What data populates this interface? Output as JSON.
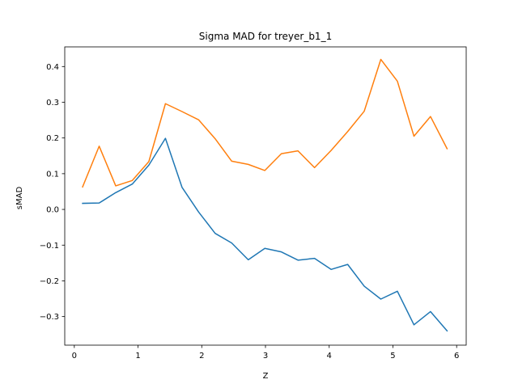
{
  "chart_data": {
    "type": "line",
    "title": "Sigma MAD for treyer_b1_1",
    "xlabel": "Z",
    "ylabel": "sMAD",
    "xlim": [
      -0.15,
      6.15
    ],
    "ylim": [
      -0.38,
      0.455
    ],
    "xticks": [
      0,
      1,
      2,
      3,
      4,
      5,
      6
    ],
    "xtick_labels": [
      "0",
      "1",
      "2",
      "3",
      "4",
      "5",
      "6"
    ],
    "yticks": [
      -0.3,
      -0.2,
      -0.1,
      0.0,
      0.1,
      0.2,
      0.3,
      0.4
    ],
    "ytick_labels": [
      "−0.3",
      "−0.2",
      "−0.1",
      "0.0",
      "0.1",
      "0.2",
      "0.3",
      "0.4"
    ],
    "grid": false,
    "legend": false,
    "series": [
      {
        "color": "#1f77b4",
        "x": [
          0.13,
          0.39,
          0.65,
          0.91,
          1.17,
          1.43,
          1.69,
          1.95,
          2.21,
          2.47,
          2.73,
          2.99,
          3.25,
          3.51,
          3.77,
          4.03,
          4.29,
          4.55,
          4.81,
          5.07,
          5.33,
          5.59,
          5.85
        ],
        "values": [
          0.017,
          0.018,
          0.047,
          0.071,
          0.124,
          0.199,
          0.062,
          -0.007,
          -0.067,
          -0.094,
          -0.141,
          -0.109,
          -0.119,
          -0.142,
          -0.137,
          -0.168,
          -0.154,
          -0.215,
          -0.251,
          -0.229,
          -0.323,
          -0.286,
          -0.34
        ]
      },
      {
        "color": "#ff7f0e",
        "x": [
          0.13,
          0.39,
          0.65,
          0.91,
          1.17,
          1.43,
          1.69,
          1.95,
          2.21,
          2.47,
          2.73,
          2.99,
          3.25,
          3.51,
          3.77,
          4.03,
          4.29,
          4.55,
          4.81,
          5.07,
          5.33,
          5.59,
          5.85
        ],
        "values": [
          0.063,
          0.177,
          0.066,
          0.081,
          0.134,
          0.296,
          0.274,
          0.251,
          0.198,
          0.135,
          0.126,
          0.109,
          0.156,
          0.164,
          0.117,
          0.165,
          0.218,
          0.275,
          0.42,
          0.359,
          0.205,
          0.26,
          0.17
        ]
      }
    ]
  }
}
